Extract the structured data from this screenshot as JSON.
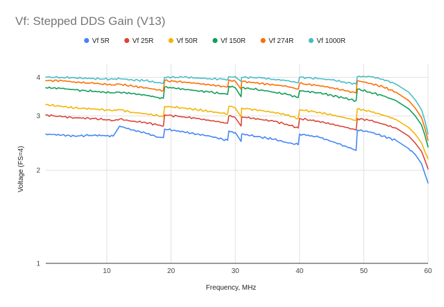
{
  "chart_data": {
    "type": "line",
    "title": "Vf: Stepped DDS Gain (V13)",
    "xlabel": "Frequency, MHz",
    "ylabel": "Voltage (FS=4)",
    "xlim": [
      0.5,
      60
    ],
    "ylim": [
      1,
      4.4
    ],
    "yscale": "log",
    "x_ticks": [
      "10",
      "20",
      "30",
      "40",
      "50",
      "60"
    ],
    "y_ticks": [
      "1",
      "2",
      "3",
      "4"
    ],
    "legend_position": "top",
    "grid": true,
    "x": [
      0.5,
      3,
      5,
      8,
      11,
      12,
      14,
      16,
      18,
      18.8,
      19,
      22,
      24,
      26,
      28,
      28.8,
      29,
      30,
      30.9,
      31,
      34,
      36,
      38,
      39.8,
      40,
      43,
      45,
      47,
      48.8,
      49,
      51,
      53,
      55,
      57,
      58,
      59,
      59.5,
      60
    ],
    "series": [
      {
        "name": "Vf 5R",
        "color": "#4285f4",
        "values": [
          2.62,
          2.6,
          2.58,
          2.6,
          2.58,
          2.78,
          2.7,
          2.64,
          2.56,
          2.55,
          2.72,
          2.66,
          2.62,
          2.58,
          2.52,
          2.5,
          2.68,
          2.65,
          2.48,
          2.62,
          2.56,
          2.52,
          2.46,
          2.42,
          2.62,
          2.56,
          2.48,
          2.4,
          2.32,
          2.7,
          2.66,
          2.58,
          2.5,
          2.35,
          2.25,
          2.1,
          1.95,
          1.82
        ]
      },
      {
        "name": "Vf 25R",
        "color": "#db4437",
        "values": [
          3.02,
          2.98,
          2.96,
          2.94,
          2.9,
          2.93,
          2.88,
          2.86,
          2.8,
          2.78,
          3.02,
          2.98,
          2.94,
          2.9,
          2.86,
          2.84,
          3.0,
          2.96,
          2.78,
          2.98,
          2.92,
          2.88,
          2.82,
          2.74,
          2.94,
          2.88,
          2.82,
          2.76,
          2.7,
          2.94,
          2.9,
          2.82,
          2.74,
          2.58,
          2.45,
          2.3,
          2.16,
          2.02
        ]
      },
      {
        "name": "Vf 50R",
        "color": "#f4b400",
        "values": [
          3.26,
          3.22,
          3.18,
          3.16,
          3.12,
          3.14,
          3.08,
          3.05,
          3.0,
          2.98,
          3.22,
          3.18,
          3.14,
          3.1,
          3.06,
          3.04,
          3.22,
          3.18,
          2.98,
          3.18,
          3.12,
          3.08,
          3.02,
          2.94,
          3.14,
          3.08,
          3.02,
          2.96,
          2.9,
          3.16,
          3.1,
          3.02,
          2.92,
          2.75,
          2.62,
          2.45,
          2.3,
          2.18
        ]
      },
      {
        "name": "Vf 150R",
        "color": "#0f9d58",
        "values": [
          3.7,
          3.68,
          3.64,
          3.6,
          3.56,
          3.58,
          3.54,
          3.5,
          3.44,
          3.42,
          3.72,
          3.66,
          3.62,
          3.58,
          3.54,
          3.52,
          3.74,
          3.7,
          3.46,
          3.7,
          3.64,
          3.58,
          3.52,
          3.44,
          3.62,
          3.56,
          3.5,
          3.42,
          3.36,
          3.66,
          3.58,
          3.48,
          3.36,
          3.16,
          3.0,
          2.8,
          2.6,
          2.38
        ]
      },
      {
        "name": "Vf 274R",
        "color": "#ff6d00",
        "values": [
          3.9,
          3.9,
          3.86,
          3.82,
          3.78,
          3.8,
          3.74,
          3.7,
          3.64,
          3.62,
          3.9,
          3.86,
          3.82,
          3.78,
          3.74,
          3.72,
          3.92,
          3.88,
          3.66,
          3.88,
          3.82,
          3.78,
          3.74,
          3.66,
          3.82,
          3.76,
          3.7,
          3.62,
          3.56,
          3.9,
          3.82,
          3.72,
          3.58,
          3.36,
          3.18,
          2.96,
          2.74,
          2.5
        ]
      },
      {
        "name": "Vf 1000R",
        "color": "#46bdc6",
        "values": [
          4.0,
          4.0,
          3.98,
          3.96,
          3.94,
          3.96,
          3.92,
          3.9,
          3.84,
          3.82,
          4.0,
          4.0,
          3.98,
          3.96,
          3.94,
          3.92,
          4.02,
          4.02,
          3.88,
          4.0,
          3.98,
          3.94,
          3.9,
          3.84,
          4.0,
          3.96,
          3.92,
          3.86,
          3.8,
          4.02,
          4.02,
          3.94,
          3.8,
          3.58,
          3.38,
          3.14,
          2.9,
          2.62
        ]
      }
    ]
  }
}
